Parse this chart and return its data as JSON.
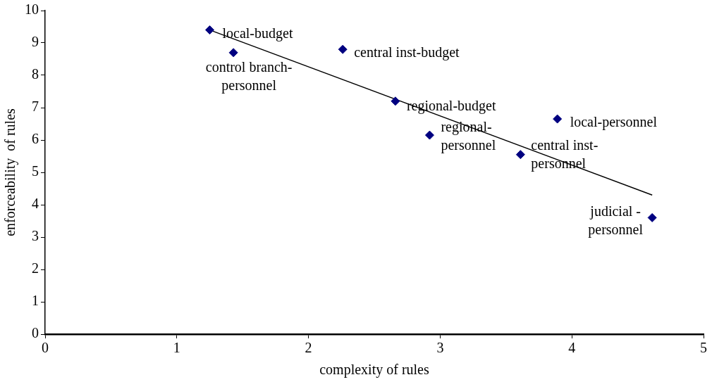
{
  "chart_data": {
    "type": "scatter",
    "xlabel": "complexity of rules",
    "ylabel": "enforceability  of rules",
    "xlim": [
      0,
      5
    ],
    "xticks": [
      0,
      1,
      2,
      3,
      4,
      5
    ],
    "ylim": [
      0,
      10
    ],
    "yticks": [
      0,
      1,
      2,
      3,
      4,
      5,
      6,
      7,
      8,
      9,
      10
    ],
    "grid": false,
    "legend": false,
    "marker": "diamond",
    "series": [
      {
        "color": "#000080",
        "x": [
          1.25,
          1.43,
          2.26,
          2.66,
          2.92,
          3.61,
          3.89,
          4.61
        ],
        "values": [
          9.4,
          8.7,
          8.8,
          7.2,
          6.15,
          5.55,
          6.65,
          3.6
        ]
      },
      {
        "type": "line",
        "marker": "none",
        "color": "#000000",
        "x": [
          1.25,
          4.61
        ],
        "values": [
          9.4,
          4.3
        ]
      }
    ],
    "annotations": [
      {
        "text": "local-budget",
        "x": 1.25,
        "y": 9.4
      },
      {
        "text": "control branch-\npersonnel",
        "x": 1.43,
        "y": 8.7
      },
      {
        "text": "central inst-budget",
        "x": 2.26,
        "y": 8.8
      },
      {
        "text": "regional-budget",
        "x": 2.66,
        "y": 7.2
      },
      {
        "text": "regional-\npersonnel",
        "x": 2.92,
        "y": 6.15
      },
      {
        "text": "central inst-\npersonnel",
        "x": 3.61,
        "y": 5.55
      },
      {
        "text": "local-personnel",
        "x": 3.89,
        "y": 6.65
      },
      {
        "text": "judicial -\npersonnel",
        "x": 4.61,
        "y": 3.6
      }
    ]
  }
}
